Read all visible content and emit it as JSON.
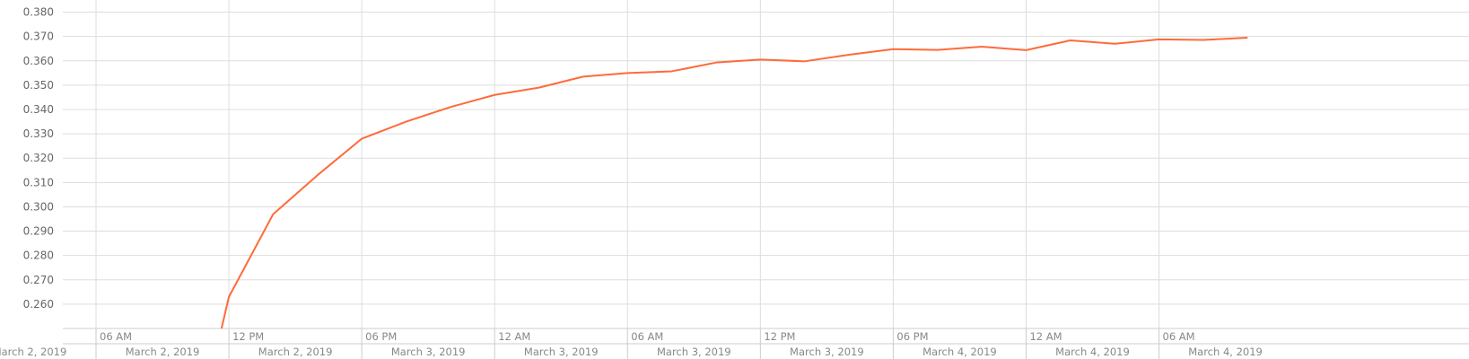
{
  "chart_data": {
    "type": "line",
    "title": "",
    "xlabel": "",
    "ylabel": "",
    "ylim": [
      0.25,
      0.385
    ],
    "xlim": [
      "2019-03-02 04:30",
      "2019-03-04 20:00"
    ],
    "y_ticks": [
      "0.260",
      "0.270",
      "0.280",
      "0.290",
      "0.300",
      "0.310",
      "0.320",
      "0.330",
      "0.340",
      "0.350",
      "0.360",
      "0.370",
      "0.380"
    ],
    "x_ticks": [
      {
        "time": "2019-03-02 06:00",
        "label": "06 AM",
        "day": "March 2, 2019"
      },
      {
        "time": "2019-03-02 12:00",
        "label": "12 PM",
        "day": "March 2, 2019"
      },
      {
        "time": "2019-03-02 18:00",
        "label": "06 PM",
        "day": "March 2, 2019"
      },
      {
        "time": "2019-03-03 00:00",
        "label": "12 AM",
        "day": "March 3, 2019"
      },
      {
        "time": "2019-03-03 06:00",
        "label": "06 AM",
        "day": "March 3, 2019"
      },
      {
        "time": "2019-03-03 12:00",
        "label": "12 PM",
        "day": "March 3, 2019"
      },
      {
        "time": "2019-03-03 18:00",
        "label": "06 PM",
        "day": "March 3, 2019"
      },
      {
        "time": "2019-03-04 00:00",
        "label": "12 AM",
        "day": "March 4, 2019"
      },
      {
        "time": "2019-03-04 06:00",
        "label": "06 AM",
        "day": "March 4, 2019"
      }
    ],
    "grid": true,
    "line_color": "#ff6a3a",
    "series": [
      {
        "points": [
          {
            "x": "2019-03-02 11:40",
            "y": 0.25
          },
          {
            "x": "2019-03-02 12:00",
            "y": 0.263
          },
          {
            "x": "2019-03-02 14:00",
            "y": 0.297
          },
          {
            "x": "2019-03-02 16:00",
            "y": 0.313
          },
          {
            "x": "2019-03-02 18:00",
            "y": 0.328
          },
          {
            "x": "2019-03-02 20:00",
            "y": 0.335
          },
          {
            "x": "2019-03-02 22:00",
            "y": 0.341
          },
          {
            "x": "2019-03-03 00:00",
            "y": 0.346
          },
          {
            "x": "2019-03-03 02:00",
            "y": 0.349
          },
          {
            "x": "2019-03-03 04:00",
            "y": 0.3535
          },
          {
            "x": "2019-03-03 06:00",
            "y": 0.355
          },
          {
            "x": "2019-03-03 08:00",
            "y": 0.3557
          },
          {
            "x": "2019-03-03 10:00",
            "y": 0.3593
          },
          {
            "x": "2019-03-03 12:00",
            "y": 0.3605
          },
          {
            "x": "2019-03-03 14:00",
            "y": 0.3598
          },
          {
            "x": "2019-03-03 16:00",
            "y": 0.3625
          },
          {
            "x": "2019-03-03 18:00",
            "y": 0.3648
          },
          {
            "x": "2019-03-03 20:00",
            "y": 0.3645
          },
          {
            "x": "2019-03-03 22:00",
            "y": 0.3658
          },
          {
            "x": "2019-03-04 00:00",
            "y": 0.3644
          },
          {
            "x": "2019-03-04 02:00",
            "y": 0.3684
          },
          {
            "x": "2019-03-04 04:00",
            "y": 0.367
          },
          {
            "x": "2019-03-04 06:00",
            "y": 0.3688
          },
          {
            "x": "2019-03-04 08:00",
            "y": 0.3686
          },
          {
            "x": "2019-03-04 10:00",
            "y": 0.3695
          }
        ]
      }
    ]
  }
}
